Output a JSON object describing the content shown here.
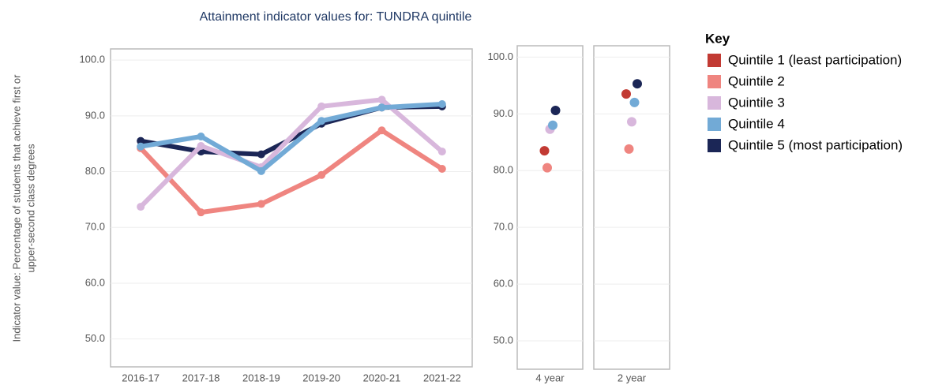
{
  "chart_data": [
    {
      "type": "line",
      "title": "Attainment indicator values for: TUNDRA quintile",
      "y_label": [
        "Indicator value: Percentage of students that achieve first or",
        "upper-second class degrees"
      ],
      "categories": [
        "2016-17",
        "2017-18",
        "2018-19",
        "2019-20",
        "2020-21",
        "2021-22"
      ],
      "ylim": [
        45,
        102
      ],
      "yticks": [
        {
          "value": 50,
          "label": "50.0"
        },
        {
          "value": 60,
          "label": "60.0"
        },
        {
          "value": 70,
          "label": "70.0"
        },
        {
          "value": 80,
          "label": "80.0"
        },
        {
          "value": 90,
          "label": "90.0"
        },
        {
          "value": 100,
          "label": "100.0"
        }
      ],
      "grid": true,
      "series": [
        {
          "name": "Quintile 2",
          "color": "#ef8580",
          "values": [
            84.2,
            72.7,
            74.2,
            79.4,
            87.4,
            80.5
          ]
        },
        {
          "name": "Quintile 5 (most participation)",
          "color": "#1b2656",
          "values": [
            85.5,
            83.6,
            83.1,
            88.6,
            91.5,
            91.7
          ]
        },
        {
          "name": "Quintile 3",
          "color": "#d8b7dc",
          "values": [
            73.7,
            84.6,
            80.8,
            91.7,
            92.9,
            83.6
          ]
        },
        {
          "name": "Quintile 4",
          "color": "#72aad6",
          "values": [
            84.5,
            86.3,
            80.1,
            89.1,
            91.5,
            92.1
          ]
        }
      ]
    },
    {
      "type": "dot",
      "legend_title": "Key",
      "categories": [
        "4 year",
        "2 year"
      ],
      "ylim": [
        45,
        102
      ],
      "yticks": [
        {
          "value": 50,
          "label": "50.0"
        },
        {
          "value": 60,
          "label": "60.0"
        },
        {
          "value": 70,
          "label": "70.0"
        },
        {
          "value": 80,
          "label": "80.0"
        },
        {
          "value": 90,
          "label": "90.0"
        },
        {
          "value": 100,
          "label": "100.0"
        }
      ],
      "grid": true,
      "series": [
        {
          "name": "Quintile 1 (least participation)",
          "color": "#c23a33",
          "values": [
            83.5,
            93.5
          ]
        },
        {
          "name": "Quintile 2",
          "color": "#ef8580",
          "values": [
            80.5,
            83.8
          ]
        },
        {
          "name": "Quintile 3",
          "color": "#d8b7dc",
          "values": [
            87.3,
            88.6
          ]
        },
        {
          "name": "Quintile 4",
          "color": "#72aad6",
          "values": [
            88.0,
            92.0
          ]
        },
        {
          "name": "Quintile 5 (most participation)",
          "color": "#1b2656",
          "values": [
            90.6,
            95.3
          ]
        }
      ]
    }
  ]
}
